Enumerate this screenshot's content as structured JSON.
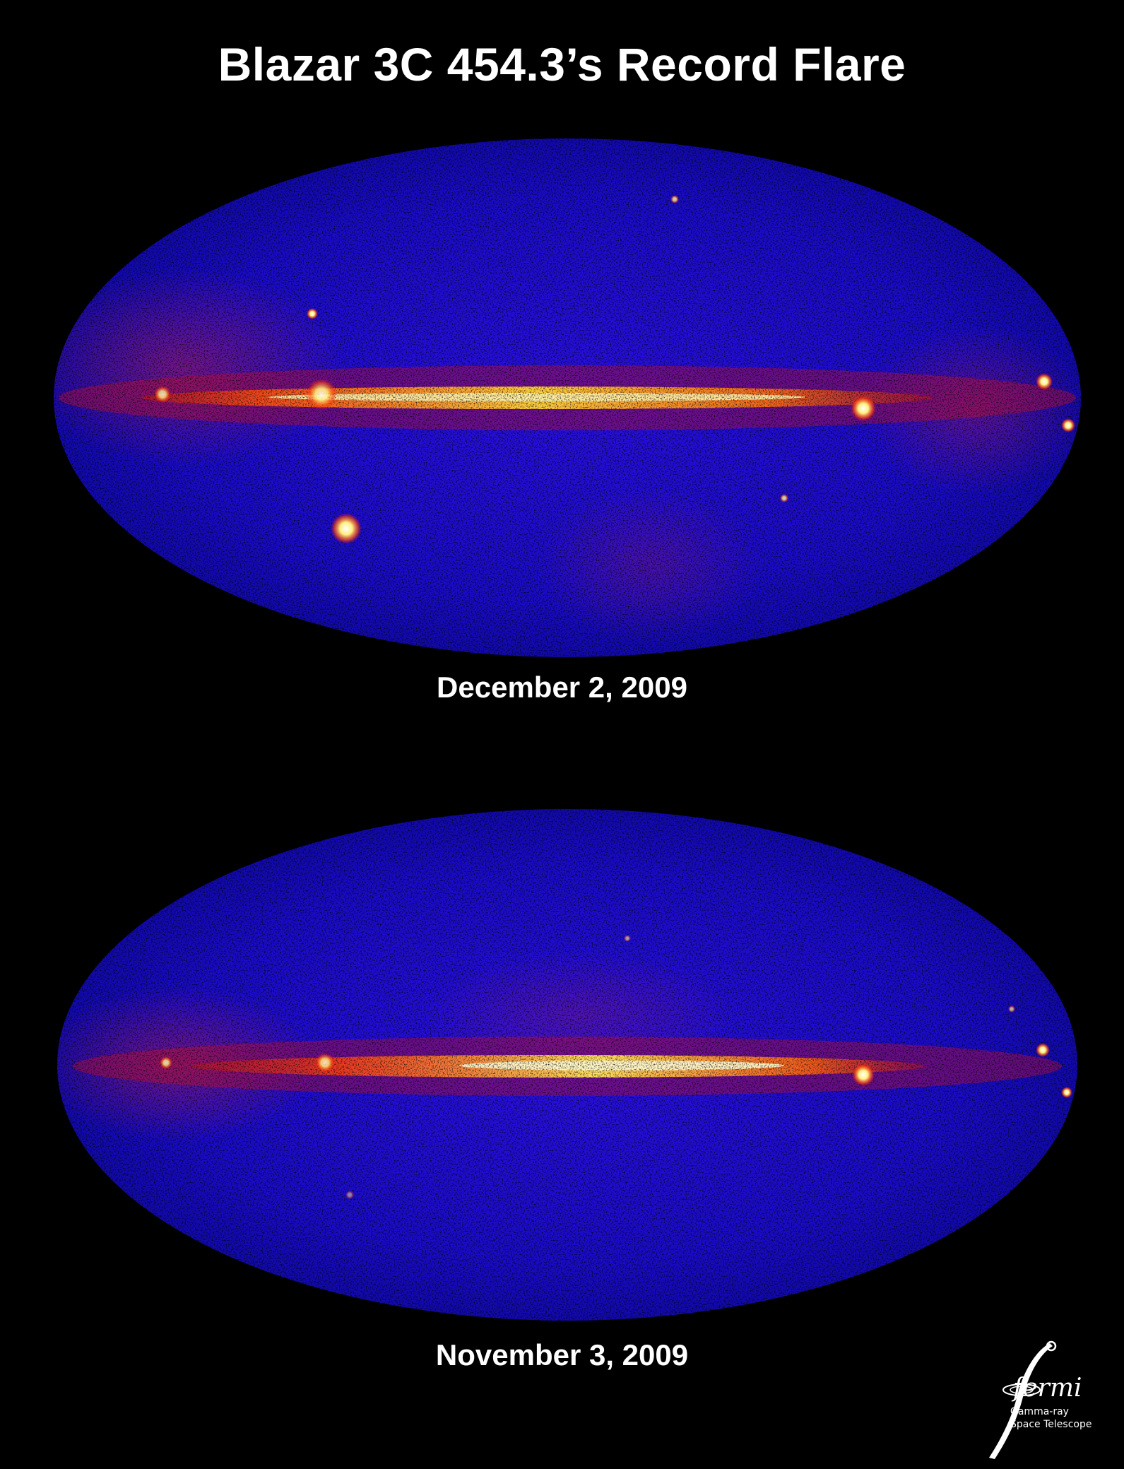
{
  "title": "Blazar 3C 454.3’s Record Flare",
  "panels": [
    {
      "caption": "December 2, 2009"
    },
    {
      "caption": "November 3, 2009"
    }
  ],
  "logo": {
    "word": "fermi",
    "line1": "Gamma-ray",
    "line2": "Space Telescope"
  },
  "colors": {
    "background": "#000000",
    "sky_low": "#1a10ff",
    "sky_mid": "#c01030",
    "plane_core": "#ffe040",
    "plane_hot": "#ffffff"
  }
}
